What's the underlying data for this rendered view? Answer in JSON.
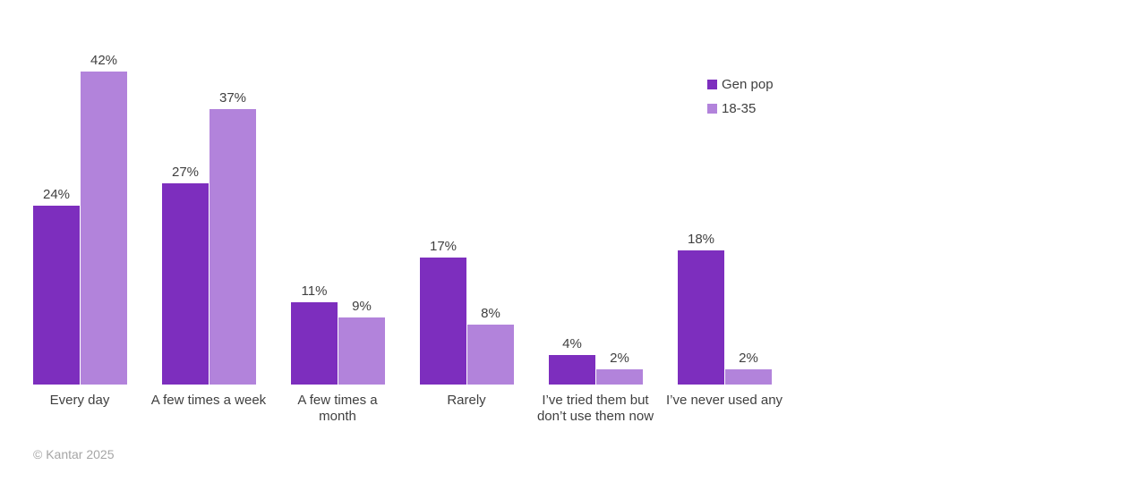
{
  "chart_data": {
    "type": "bar",
    "title": "",
    "categories": [
      "Every day",
      "A few times a week",
      "A few times a month",
      "Rarely",
      "I’ve tried them but don’t use them now",
      "I’ve never used any"
    ],
    "series": [
      {
        "name": "Gen pop",
        "color": "#7d2ebe",
        "values": [
          24,
          27,
          11,
          17,
          4,
          18
        ]
      },
      {
        "name": "18-35",
        "color": "#b283db",
        "values": [
          42,
          37,
          9,
          8,
          2,
          2
        ]
      }
    ],
    "value_suffix": "%",
    "ylim": [
      0,
      45
    ],
    "grid": false,
    "legend_position": "top-right",
    "label_color": "#404040"
  },
  "footer": {
    "copyright": "© Kantar 2025"
  }
}
